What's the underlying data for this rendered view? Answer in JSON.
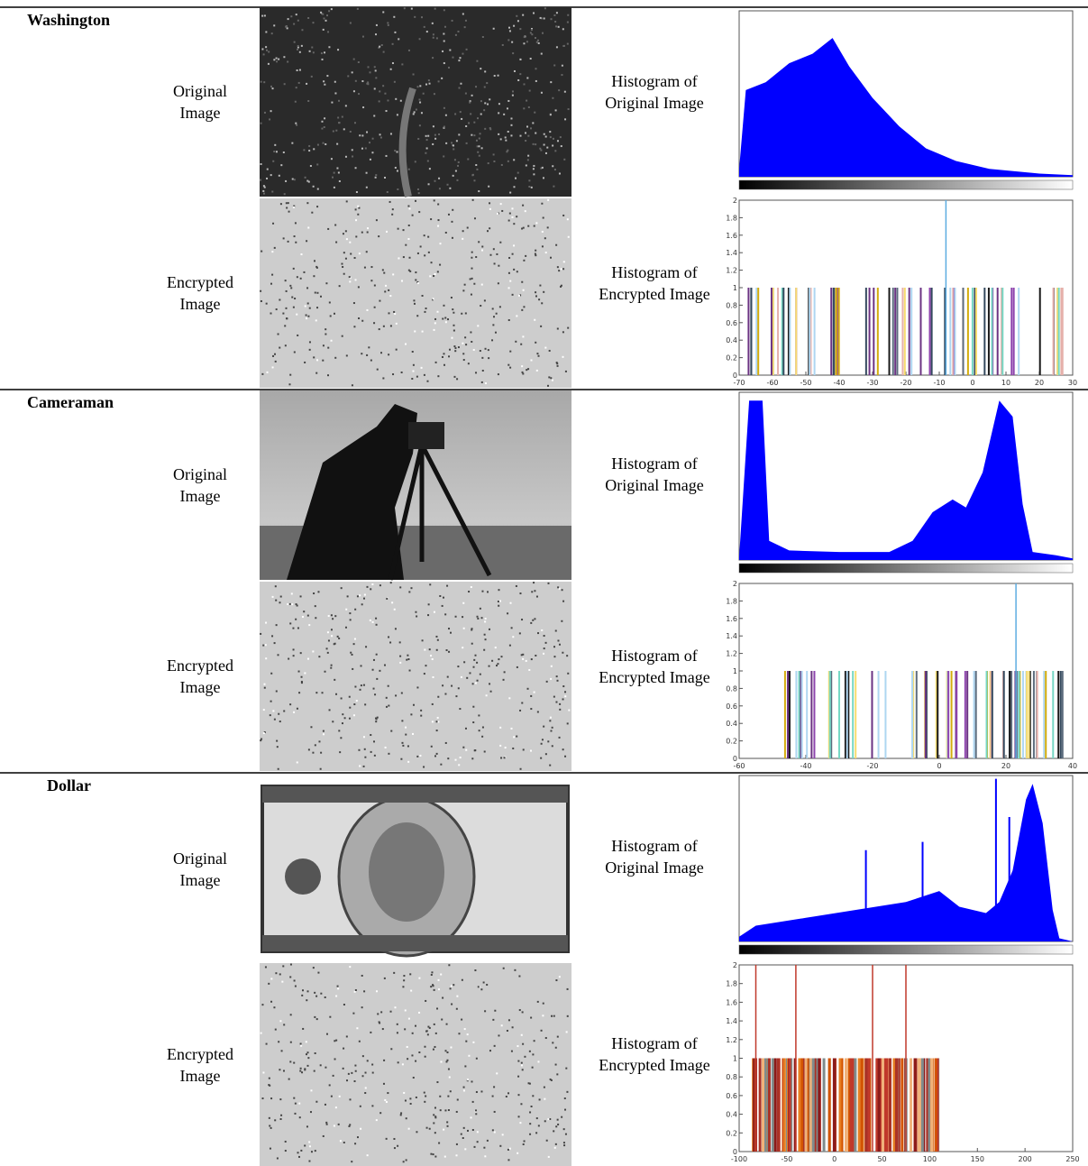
{
  "rows": [
    {
      "name": "Washington",
      "original": {
        "label": "Original Image",
        "histogram_label": "Histogram of Original Image"
      },
      "encrypted": {
        "label": "Encrypted Image",
        "histogram_label": "Histogram of Encrypted Image",
        "histogram": {
          "yticks": [
            0,
            0.2,
            0.4,
            0.6,
            0.8,
            1,
            1.2,
            1.4,
            1.6,
            1.8,
            2
          ],
          "xticks": [
            -70,
            -60,
            -50,
            -40,
            -30,
            -20,
            -10,
            0,
            10,
            20,
            30
          ]
        }
      }
    },
    {
      "name": "Cameraman",
      "original": {
        "label": "Original Image",
        "histogram_label": "Histogram of Original Image"
      },
      "encrypted": {
        "label": "Encrypted Image",
        "histogram_label": "Histogram of Encrypted Image",
        "histogram": {
          "yticks": [
            0,
            0.2,
            0.4,
            0.6,
            0.8,
            1,
            1.2,
            1.4,
            1.6,
            1.8,
            2
          ],
          "xticks": [
            -60,
            -40,
            -20,
            0,
            20,
            40
          ]
        }
      }
    },
    {
      "name": "Dollar",
      "original": {
        "label": "Original Image",
        "histogram_label": "Histogram of Original Image"
      },
      "encrypted": {
        "label": "Encrypted Image",
        "histogram_label": "Histogram of Encrypted Image",
        "histogram": {
          "yticks": [
            0,
            0.2,
            0.4,
            0.6,
            0.8,
            1,
            1.2,
            1.4,
            1.6,
            1.8,
            2
          ],
          "xticks": [
            -100,
            -50,
            0,
            50,
            100,
            150,
            200,
            250
          ]
        }
      }
    }
  ]
}
